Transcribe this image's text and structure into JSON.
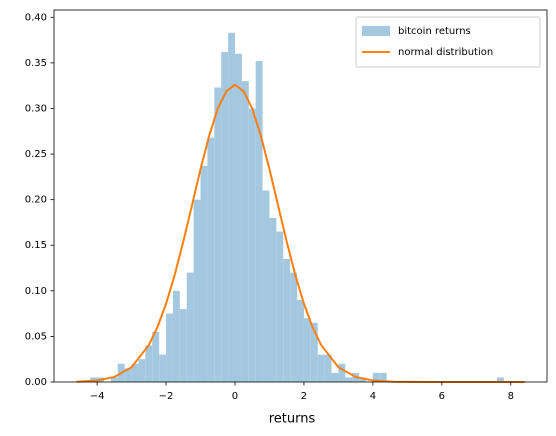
{
  "chart_data": {
    "type": "histogram",
    "xlabel": "returns",
    "bins": [
      -4.2,
      -4.0,
      -3.8,
      -3.6,
      -3.4,
      -3.2,
      -3.0,
      -2.8,
      -2.6,
      -2.4,
      -2.2,
      -2.0,
      -1.8,
      -1.6,
      -1.4,
      -1.2,
      -1.0,
      -0.8,
      -0.6,
      -0.4,
      -0.2,
      0.0,
      0.2,
      0.4,
      0.6,
      0.8,
      1.0,
      1.2,
      1.4,
      1.6,
      1.8,
      2.0,
      2.2,
      2.4,
      2.6,
      2.8,
      3.0,
      3.2,
      3.4,
      3.6,
      3.8,
      4.0,
      4.2,
      4.4,
      4.6,
      4.8,
      5.0,
      5.2,
      5.4,
      5.6,
      5.8,
      6.0,
      6.2,
      6.4,
      6.6,
      6.8,
      7.0,
      7.2,
      7.4,
      7.6,
      7.8
    ],
    "series": [
      {
        "name": "bitcoin returns",
        "type": "histogram",
        "color": "#a5c8e1",
        "values": [
          0.005,
          0.005,
          0,
          0.005,
          0.02,
          0.015,
          0.02,
          0.025,
          0.04,
          0.055,
          0.03,
          0.075,
          0.1,
          0.08,
          0.12,
          0.2,
          0.237,
          0.268,
          0.323,
          0.362,
          0.383,
          0.36,
          0.33,
          0.3,
          0.352,
          0.21,
          0.18,
          0.165,
          0.135,
          0.12,
          0.09,
          0.07,
          0.065,
          0.03,
          0.03,
          0.01,
          0.02,
          0.005,
          0.01,
          0.005,
          0,
          0.01,
          0.01,
          0,
          0,
          0,
          0,
          0,
          0,
          0,
          0,
          0,
          0,
          0,
          0,
          0,
          0,
          0,
          0,
          0.005
        ]
      },
      {
        "name": "normal distribution",
        "type": "line",
        "color": "#ff7f0e",
        "x": [
          -4.6,
          -4,
          -3.5,
          -3,
          -2.5,
          -2.25,
          -2,
          -1.75,
          -1.5,
          -1.25,
          -1,
          -0.75,
          -0.5,
          -0.25,
          0,
          0.25,
          0.5,
          0.75,
          1,
          1.25,
          1.5,
          1.75,
          2,
          2.25,
          2.5,
          3,
          3.5,
          4,
          4.6,
          5,
          6,
          7,
          8.4
        ],
        "values": [
          0.0003,
          0.0016,
          0.0055,
          0.0162,
          0.0405,
          0.0601,
          0.0858,
          0.1173,
          0.154,
          0.1935,
          0.2335,
          0.27,
          0.3,
          0.319,
          0.326,
          0.319,
          0.3,
          0.27,
          0.2335,
          0.1935,
          0.154,
          0.1173,
          0.0858,
          0.0601,
          0.0405,
          0.0162,
          0.0055,
          0.0016,
          0.0003,
          0.0001,
          0,
          0,
          0
        ]
      }
    ],
    "xlim": [
      -5.25,
      9.05
    ],
    "xticks": [
      {
        "value": -4,
        "label": "−4"
      },
      {
        "value": -2,
        "label": "−2"
      },
      0,
      2,
      4,
      6,
      8
    ],
    "ylim": [
      0,
      0.408
    ],
    "yticks": [
      {
        "value": 0,
        "label": "0.00"
      },
      {
        "value": 0.05,
        "label": "0.05"
      },
      {
        "value": 0.1,
        "label": "0.10"
      },
      {
        "value": 0.15,
        "label": "0.15"
      },
      {
        "value": 0.2,
        "label": "0.20"
      },
      {
        "value": 0.25,
        "label": "0.25"
      },
      {
        "value": 0.3,
        "label": "0.30"
      },
      {
        "value": 0.35,
        "label": "0.35"
      },
      {
        "value": 0.4,
        "label": "0.40"
      }
    ],
    "legend": "upper right"
  }
}
